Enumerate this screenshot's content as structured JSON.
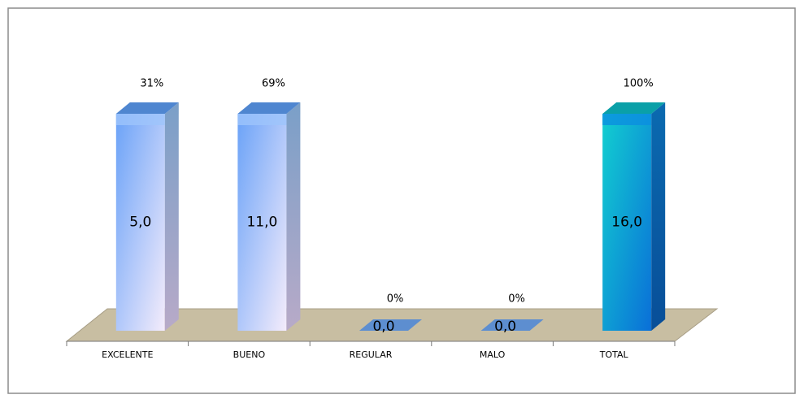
{
  "chart_data": {
    "type": "bar3d",
    "categories": [
      "EXCELENTE",
      "BUENO",
      "REGULAR",
      "MALO",
      "TOTAL"
    ],
    "values": [
      5,
      11,
      0,
      0,
      16
    ],
    "value_labels": [
      "5,0",
      "11,0",
      "0,0",
      "0,0",
      "16,0"
    ],
    "percent_values": [
      31,
      69,
      0,
      0,
      100
    ],
    "percent_labels": [
      "31%",
      "69%",
      "0%",
      "0%",
      "100%"
    ],
    "colors": [
      "#6ea6f6",
      "#6ea6f6",
      "#4a86d8",
      "#4a86d8",
      "#12b8c8"
    ],
    "ylim": [
      0,
      5
    ]
  }
}
